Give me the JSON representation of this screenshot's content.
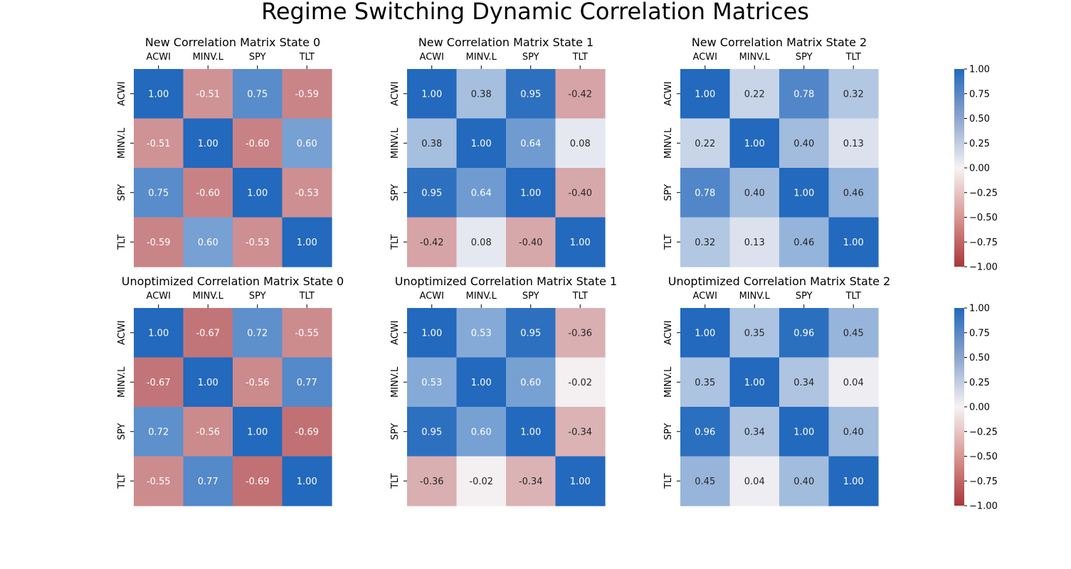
{
  "figure": {
    "title": "Regime Switching Dynamic Correlation Matrices"
  },
  "colors": {
    "low": "#a9373b",
    "mid": "#f6f3f4",
    "high": "#2369bd",
    "dark_text": "#262626",
    "light_text": "#ffffff"
  },
  "colorbar": {
    "range": [
      -1,
      1
    ],
    "tick_labels": [
      "1.00",
      "0.75",
      "0.50",
      "0.25",
      "0.00",
      "−0.25",
      "−0.50",
      "−0.75",
      "−1.00"
    ]
  },
  "chart_data": [
    {
      "type": "heatmap",
      "title": "New Correlation Matrix State 0",
      "x_labels": [
        "ACWI",
        "MINV.L",
        "SPY",
        "TLT"
      ],
      "y_labels": [
        "ACWI",
        "MINV.L",
        "SPY",
        "TLT"
      ],
      "values": [
        [
          1.0,
          -0.51,
          0.75,
          -0.59
        ],
        [
          -0.51,
          1.0,
          -0.6,
          0.6
        ],
        [
          0.75,
          -0.6,
          1.0,
          -0.53
        ],
        [
          -0.59,
          0.6,
          -0.53,
          1.0
        ]
      ],
      "value_labels": [
        [
          "1.00",
          "-0.51",
          "0.75",
          "-0.59"
        ],
        [
          "-0.51",
          "1.00",
          "-0.60",
          "0.60"
        ],
        [
          "0.75",
          "-0.60",
          "1.00",
          "-0.53"
        ],
        [
          "-0.59",
          "0.60",
          "-0.53",
          "1.00"
        ]
      ],
      "vmin": -1,
      "vmax": 1
    },
    {
      "type": "heatmap",
      "title": "New Correlation Matrix State 1",
      "x_labels": [
        "ACWI",
        "MINV.L",
        "SPY",
        "TLT"
      ],
      "y_labels": [
        "ACWI",
        "MINV.L",
        "SPY",
        "TLT"
      ],
      "values": [
        [
          1.0,
          0.38,
          0.95,
          -0.42
        ],
        [
          0.38,
          1.0,
          0.64,
          0.08
        ],
        [
          0.95,
          0.64,
          1.0,
          -0.4
        ],
        [
          -0.42,
          0.08,
          -0.4,
          1.0
        ]
      ],
      "value_labels": [
        [
          "1.00",
          "0.38",
          "0.95",
          "-0.42"
        ],
        [
          "0.38",
          "1.00",
          "0.64",
          "0.08"
        ],
        [
          "0.95",
          "0.64",
          "1.00",
          "-0.40"
        ],
        [
          "-0.42",
          "0.08",
          "-0.40",
          "1.00"
        ]
      ],
      "vmin": -1,
      "vmax": 1
    },
    {
      "type": "heatmap",
      "title": "New Correlation Matrix State 2",
      "x_labels": [
        "ACWI",
        "MINV.L",
        "SPY",
        "TLT"
      ],
      "y_labels": [
        "ACWI",
        "MINV.L",
        "SPY",
        "TLT"
      ],
      "values": [
        [
          1.0,
          0.22,
          0.78,
          0.32
        ],
        [
          0.22,
          1.0,
          0.4,
          0.13
        ],
        [
          0.78,
          0.4,
          1.0,
          0.46
        ],
        [
          0.32,
          0.13,
          0.46,
          1.0
        ]
      ],
      "value_labels": [
        [
          "1.00",
          "0.22",
          "0.78",
          "0.32"
        ],
        [
          "0.22",
          "1.00",
          "0.40",
          "0.13"
        ],
        [
          "0.78",
          "0.40",
          "1.00",
          "0.46"
        ],
        [
          "0.32",
          "0.13",
          "0.46",
          "1.00"
        ]
      ],
      "vmin": -1,
      "vmax": 1
    },
    {
      "type": "heatmap",
      "title": "Unoptimized Correlation Matrix State 0",
      "x_labels": [
        "ACWI",
        "MINV.L",
        "SPY",
        "TLT"
      ],
      "y_labels": [
        "ACWI",
        "MINV.L",
        "SPY",
        "TLT"
      ],
      "values": [
        [
          1.0,
          -0.67,
          0.72,
          -0.55
        ],
        [
          -0.67,
          1.0,
          -0.56,
          0.77
        ],
        [
          0.72,
          -0.56,
          1.0,
          -0.69
        ],
        [
          -0.55,
          0.77,
          -0.69,
          1.0
        ]
      ],
      "value_labels": [
        [
          "1.00",
          "-0.67",
          "0.72",
          "-0.55"
        ],
        [
          "-0.67",
          "1.00",
          "-0.56",
          "0.77"
        ],
        [
          "0.72",
          "-0.56",
          "1.00",
          "-0.69"
        ],
        [
          "-0.55",
          "0.77",
          "-0.69",
          "1.00"
        ]
      ],
      "vmin": -1,
      "vmax": 1
    },
    {
      "type": "heatmap",
      "title": "Unoptimized Correlation Matrix State 1",
      "x_labels": [
        "ACWI",
        "MINV.L",
        "SPY",
        "TLT"
      ],
      "y_labels": [
        "ACWI",
        "MINV.L",
        "SPY",
        "TLT"
      ],
      "values": [
        [
          1.0,
          0.53,
          0.95,
          -0.36
        ],
        [
          0.53,
          1.0,
          0.6,
          -0.02
        ],
        [
          0.95,
          0.6,
          1.0,
          -0.34
        ],
        [
          -0.36,
          -0.02,
          -0.34,
          1.0
        ]
      ],
      "value_labels": [
        [
          "1.00",
          "0.53",
          "0.95",
          "-0.36"
        ],
        [
          "0.53",
          "1.00",
          "0.60",
          "-0.02"
        ],
        [
          "0.95",
          "0.60",
          "1.00",
          "-0.34"
        ],
        [
          "-0.36",
          "-0.02",
          "-0.34",
          "1.00"
        ]
      ],
      "vmin": -1,
      "vmax": 1
    },
    {
      "type": "heatmap",
      "title": "Unoptimized Correlation Matrix State 2",
      "x_labels": [
        "ACWI",
        "MINV.L",
        "SPY",
        "TLT"
      ],
      "y_labels": [
        "ACWI",
        "MINV.L",
        "SPY",
        "TLT"
      ],
      "values": [
        [
          1.0,
          0.35,
          0.96,
          0.45
        ],
        [
          0.35,
          1.0,
          0.34,
          0.04
        ],
        [
          0.96,
          0.34,
          1.0,
          0.4
        ],
        [
          0.45,
          0.04,
          0.4,
          1.0
        ]
      ],
      "value_labels": [
        [
          "1.00",
          "0.35",
          "0.96",
          "0.45"
        ],
        [
          "0.35",
          "1.00",
          "0.34",
          "0.04"
        ],
        [
          "0.96",
          "0.34",
          "1.00",
          "0.40"
        ],
        [
          "0.45",
          "0.04",
          "0.40",
          "1.00"
        ]
      ],
      "vmin": -1,
      "vmax": 1
    }
  ]
}
